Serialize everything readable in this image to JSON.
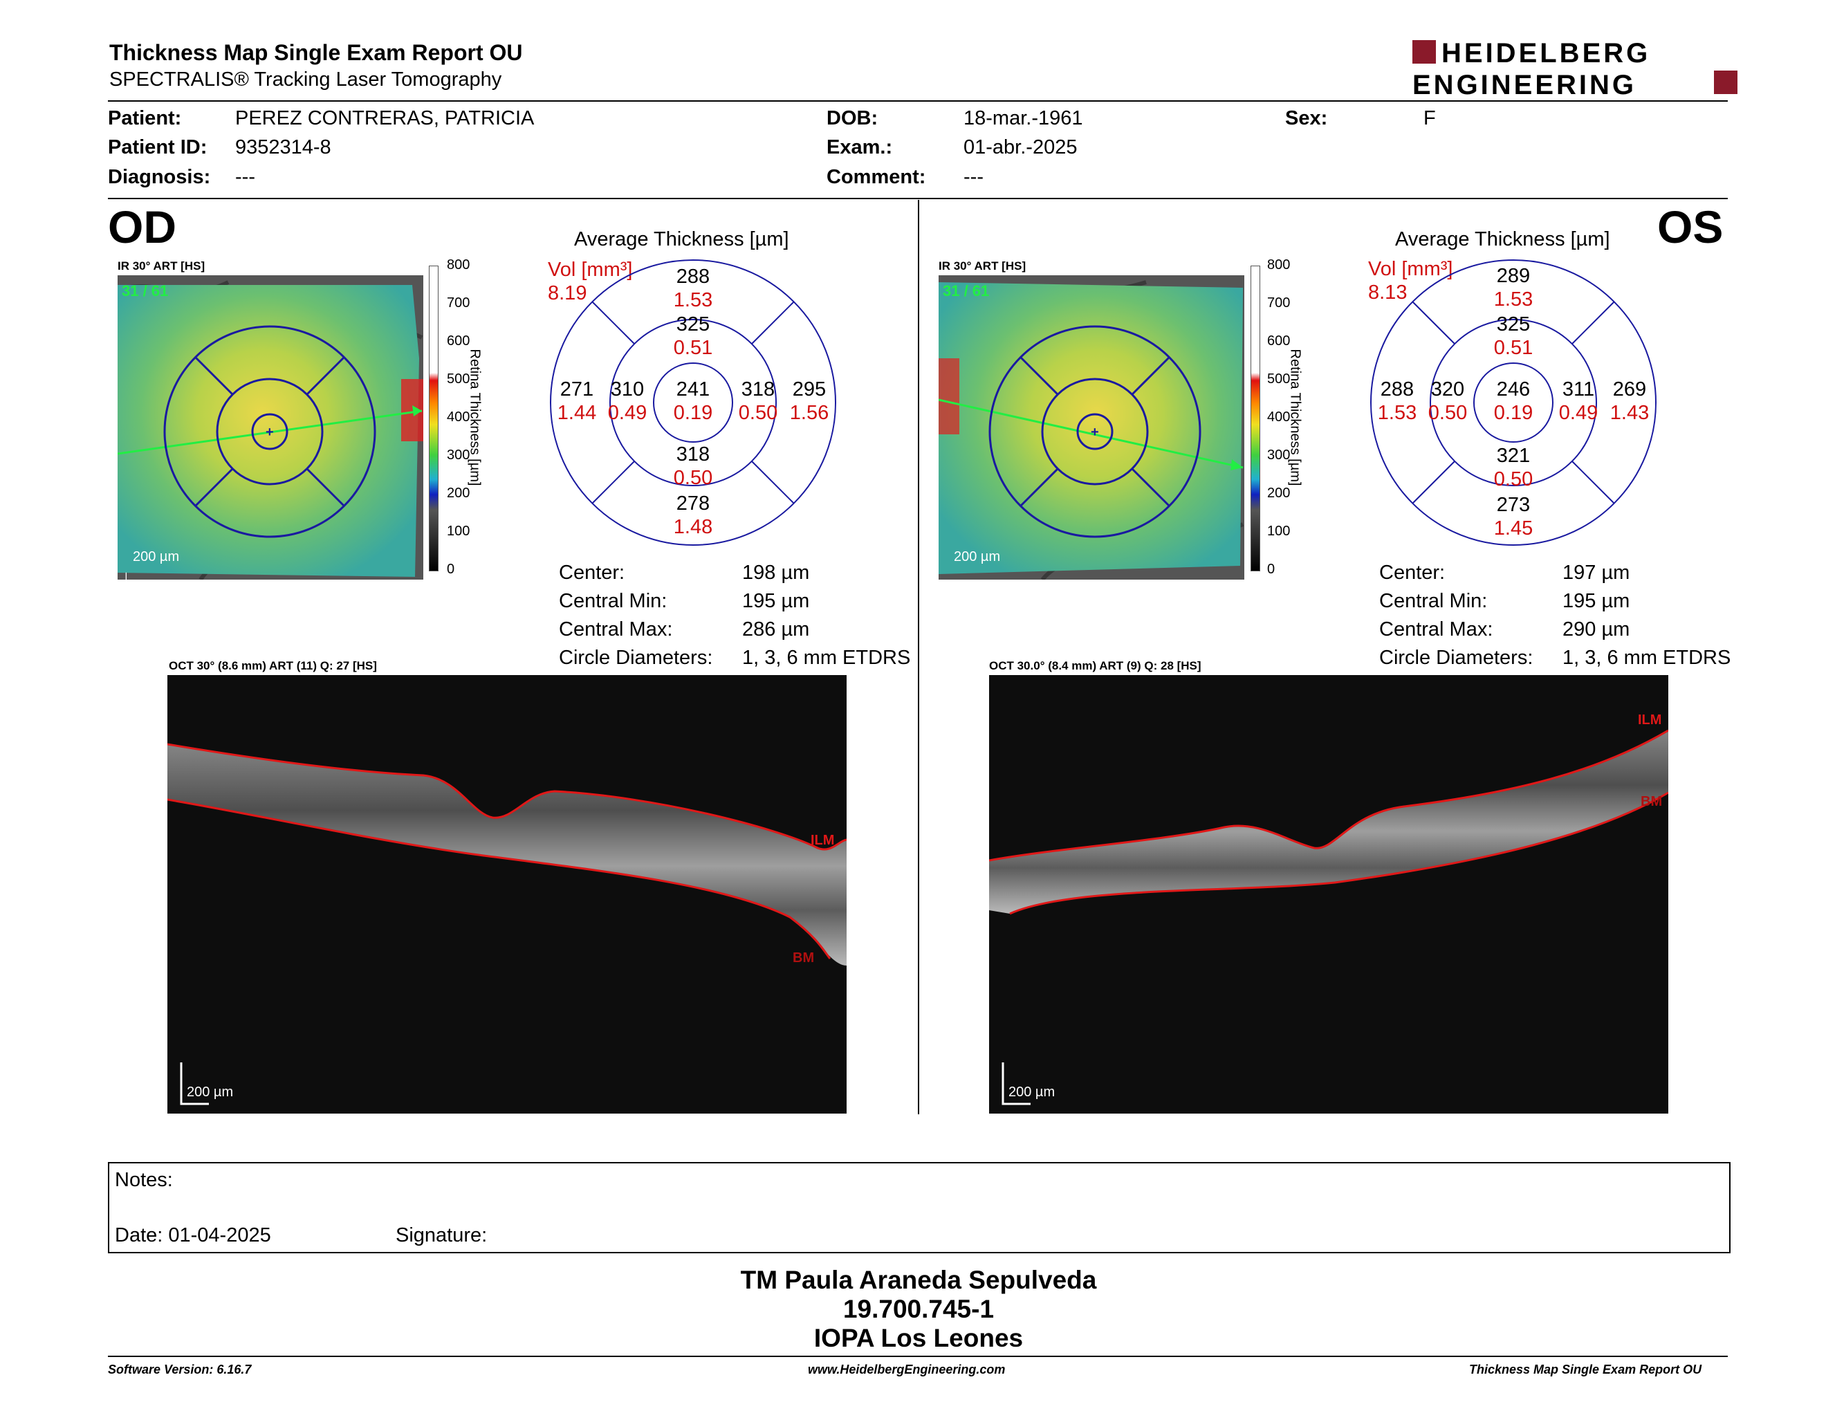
{
  "header": {
    "title": "Thickness Map Single Exam Report OU",
    "subtitle": "SPECTRALIS® Tracking Laser Tomography",
    "logo_line1": "HEIDELBERG",
    "logo_line2": "ENGINEERING"
  },
  "patient": {
    "patient_label": "Patient:",
    "patient_value": "PEREZ CONTRERAS, PATRICIA",
    "id_label": "Patient ID:",
    "id_value": "9352314-8",
    "diagnosis_label": "Diagnosis:",
    "diagnosis_value": "---",
    "dob_label": "DOB:",
    "dob_value": "18-mar.-1961",
    "exam_label": "Exam.:",
    "exam_value": "01-abr.-2025",
    "comment_label": "Comment:",
    "comment_value": "---",
    "sex_label": "Sex:",
    "sex_value": "F"
  },
  "colorbar": {
    "ticks": [
      "800",
      "700",
      "600",
      "500",
      "400",
      "300",
      "200",
      "100",
      "0"
    ],
    "label": "Retina Thickness [µm]"
  },
  "od": {
    "eye": "OD",
    "ir_label": "IR 30° ART [HS]",
    "ir_counter": "31 / 61",
    "ir_scale": "200 µm",
    "avg_title": "Average Thickness [µm]",
    "vol_label": "Vol [mm³]",
    "vol_total": "8.19",
    "sectors": {
      "outer_top": [
        "288",
        "1.53"
      ],
      "inner_top": [
        "325",
        "0.51"
      ],
      "outer_left": [
        "271",
        "1.44"
      ],
      "inner_left": [
        "310",
        "0.49"
      ],
      "center": [
        "241",
        "0.19"
      ],
      "inner_right": [
        "318",
        "0.50"
      ],
      "outer_right": [
        "295",
        "1.56"
      ],
      "inner_bottom": [
        "318",
        "0.50"
      ],
      "outer_bottom": [
        "278",
        "1.48"
      ]
    },
    "stats": {
      "center_label": "Center:",
      "center_value": "198 µm",
      "min_label": "Central Min:",
      "min_value": "195 µm",
      "max_label": "Central Max:",
      "max_value": "286 µm",
      "diam_label": "Circle Diameters:",
      "diam_value": "1, 3, 6 mm ETDRS"
    },
    "oct_label": "OCT 30° (8.6 mm) ART (11) Q: 27 [HS]",
    "oct_scale": "200 µm",
    "ilm": "ILM",
    "bm": "BM"
  },
  "os": {
    "eye": "OS",
    "ir_label": "IR 30° ART [HS]",
    "ir_counter": "31 / 61",
    "ir_scale": "200 µm",
    "avg_title": "Average Thickness [µm]",
    "vol_label": "Vol [mm³]",
    "vol_total": "8.13",
    "sectors": {
      "outer_top": [
        "289",
        "1.53"
      ],
      "inner_top": [
        "325",
        "0.51"
      ],
      "outer_left": [
        "288",
        "1.53"
      ],
      "inner_left": [
        "320",
        "0.50"
      ],
      "center": [
        "246",
        "0.19"
      ],
      "inner_right": [
        "311",
        "0.49"
      ],
      "outer_right": [
        "269",
        "1.43"
      ],
      "inner_bottom": [
        "321",
        "0.50"
      ],
      "outer_bottom": [
        "273",
        "1.45"
      ]
    },
    "stats": {
      "center_label": "Center:",
      "center_value": "197 µm",
      "min_label": "Central Min:",
      "min_value": "195 µm",
      "max_label": "Central Max:",
      "max_value": "290 µm",
      "diam_label": "Circle Diameters:",
      "diam_value": "1, 3, 6 mm ETDRS"
    },
    "oct_label": "OCT 30.0° (8.4 mm) ART (9) Q: 28 [HS]",
    "oct_scale": "200 µm",
    "ilm": "ILM",
    "bm": "BM"
  },
  "notes": {
    "notes_label": "Notes:",
    "date_label": "Date: 01-04-2025",
    "signature_label": "Signature:"
  },
  "signature_block": {
    "name": "TM Paula Araneda Sepulveda",
    "rut": "19.700.745-1",
    "place": "IOPA Los Leones"
  },
  "footer": {
    "software": "Software Version: 6.16.7",
    "website": "www.HeidelbergEngineering.com",
    "report": "Thickness Map Single Exam Report OU"
  },
  "colors": {
    "sector_lines": "#1a1aa0",
    "volume_red": "#d01010",
    "logo_red": "#8a1a2a",
    "segmentation_red": "#e01818"
  }
}
